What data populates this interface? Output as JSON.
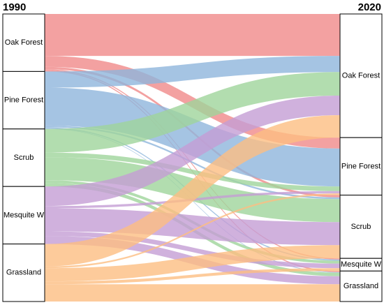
{
  "chart_data": {
    "type": "alluvial",
    "left_title": "1990",
    "right_title": "2020",
    "categories": [
      "Oak Forest",
      "Pine Forest",
      "Scrub",
      "Mesquite W",
      "Grassland"
    ],
    "series": [
      {
        "name": "Oak Forest",
        "color": "#f08a8a",
        "values": [
          73,
          19,
          4,
          2,
          2
        ]
      },
      {
        "name": "Pine Forest",
        "color": "#8fb5dc",
        "values": [
          28,
          66,
          3,
          2,
          1
        ]
      },
      {
        "name": "Scrub",
        "color": "#9fd59b",
        "values": [
          41,
          8,
          40,
          5,
          6
        ]
      },
      {
        "name": "Mesquite W",
        "color": "#c49dd4",
        "values": [
          34,
          4,
          40,
          8,
          14
        ]
      },
      {
        "name": "Grassland",
        "color": "#fdbe82",
        "values": [
          39,
          3,
          23,
          5,
          30
        ]
      }
    ]
  }
}
